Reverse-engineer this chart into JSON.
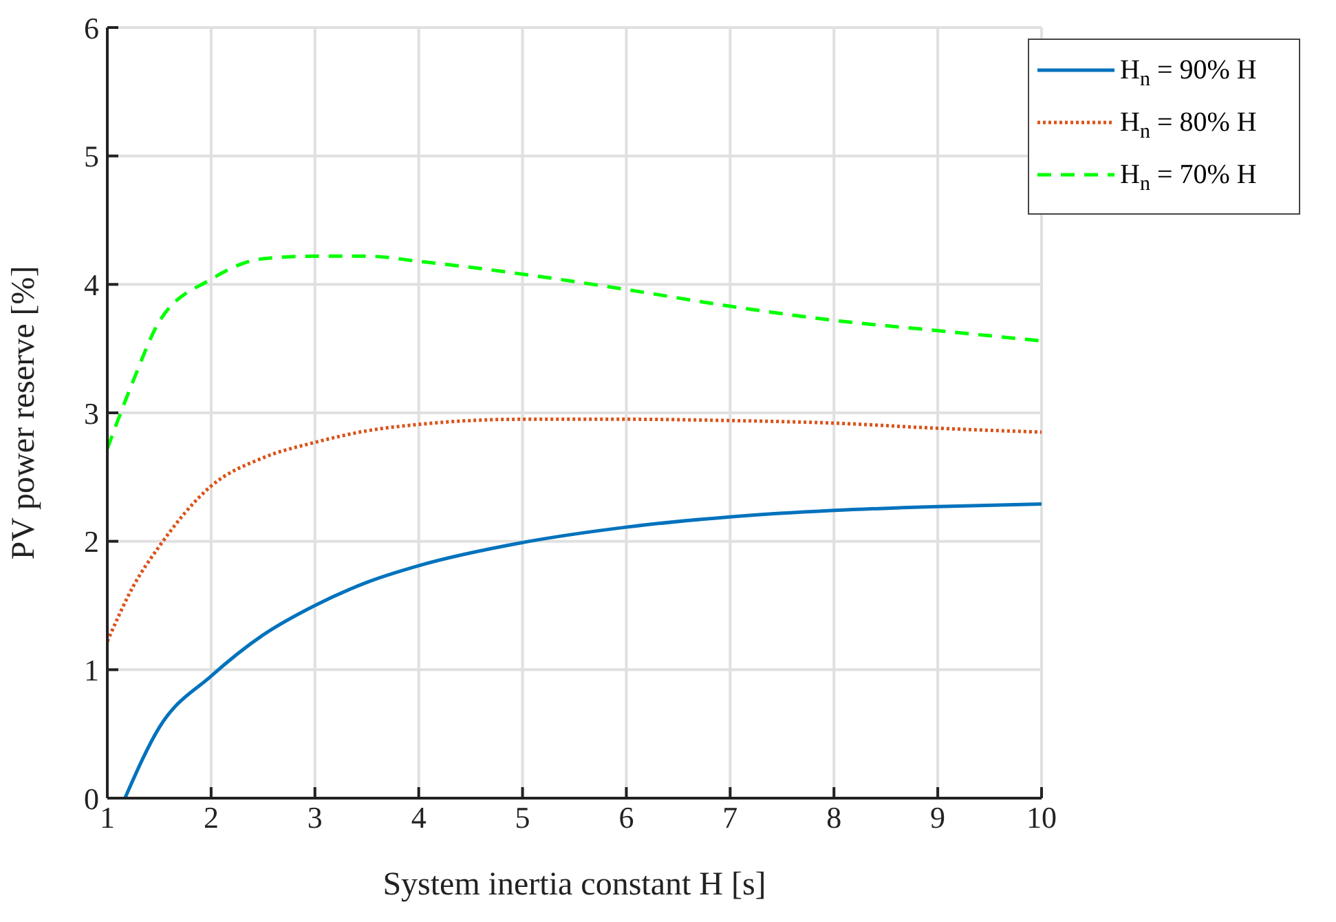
{
  "chart_data": {
    "type": "line",
    "xlabel": "System inertia constant H [s]",
    "ylabel": "PV power reserve [%]",
    "xlim": [
      1,
      10
    ],
    "xticks": [
      1,
      2,
      3,
      4,
      5,
      6,
      7,
      8,
      9,
      10
    ],
    "ylim": [
      0,
      6
    ],
    "yticks": [
      0,
      1,
      2,
      3,
      4,
      5,
      6
    ],
    "grid": true,
    "legend": "top right",
    "marker": "none",
    "series": [
      {
        "name": "H$_{n}$ = 90% H",
        "color": "#0072bd",
        "line_style": "solid",
        "x": [
          1.17,
          1.5,
          2,
          2.5,
          3,
          3.5,
          4,
          5,
          6,
          7,
          8,
          9,
          10
        ],
        "values": [
          0,
          0.55,
          0.95,
          1.27,
          1.5,
          1.68,
          1.81,
          1.99,
          2.11,
          2.19,
          2.24,
          2.27,
          2.29
        ]
      },
      {
        "name": "H$_{n}$ = 80% H",
        "color": "#d95319",
        "line_style": "dotted",
        "x": [
          1,
          1.25,
          1.5,
          2,
          2.5,
          3,
          3.5,
          4,
          5,
          6,
          7,
          8,
          9,
          10
        ],
        "values": [
          1.22,
          1.65,
          1.96,
          2.43,
          2.65,
          2.77,
          2.86,
          2.91,
          2.95,
          2.95,
          2.94,
          2.92,
          2.88,
          2.85
        ]
      },
      {
        "name": "H$_{n}$ = 70% H",
        "color": "#00ff00",
        "line_style": "dashed",
        "x": [
          1,
          1.25,
          1.5,
          2,
          2.5,
          3,
          3.5,
          4,
          5,
          6,
          7,
          8,
          9,
          10
        ],
        "values": [
          2.72,
          3.25,
          3.71,
          4.04,
          4.2,
          4.22,
          4.22,
          4.18,
          4.08,
          3.96,
          3.83,
          3.72,
          3.64,
          3.56
        ]
      }
    ]
  }
}
